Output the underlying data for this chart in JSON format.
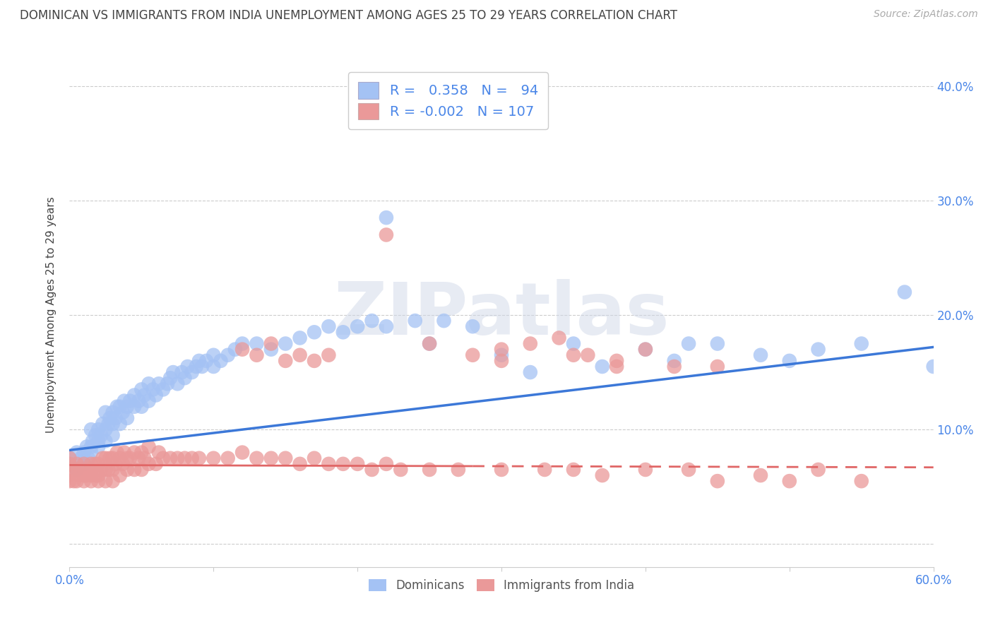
{
  "title": "DOMINICAN VS IMMIGRANTS FROM INDIA UNEMPLOYMENT AMONG AGES 25 TO 29 YEARS CORRELATION CHART",
  "source": "Source: ZipAtlas.com",
  "ylabel": "Unemployment Among Ages 25 to 29 years",
  "xlim": [
    0.0,
    0.6
  ],
  "ylim": [
    -0.02,
    0.42
  ],
  "xticks": [
    0.0,
    0.1,
    0.2,
    0.3,
    0.4,
    0.5,
    0.6
  ],
  "xtick_labels": [
    "0.0%",
    "",
    "",
    "",
    "",
    "",
    "60.0%"
  ],
  "yticks": [
    0.0,
    0.1,
    0.2,
    0.3,
    0.4
  ],
  "ytick_labels_right": [
    "",
    "10.0%",
    "20.0%",
    "30.0%",
    "40.0%"
  ],
  "watermark": "ZIPatlas",
  "blue_R": "0.358",
  "blue_N": "94",
  "pink_R": "-0.002",
  "pink_N": "107",
  "blue_scatter_color": "#a4c2f4",
  "pink_scatter_color": "#ea9999",
  "blue_line_color": "#3c78d8",
  "pink_line_color": "#e06666",
  "title_color": "#434343",
  "right_tick_color": "#4a86e8",
  "bottom_tick_color": "#4a86e8",
  "ylabel_color": "#434343",
  "legend_text_color": "#4a86e8",
  "source_color": "#aaaaaa",
  "background_color": "#ffffff",
  "grid_color": "#cccccc",
  "blue_scatter_x": [
    0.0,
    0.0,
    0.005,
    0.005,
    0.008,
    0.01,
    0.01,
    0.012,
    0.013,
    0.015,
    0.015,
    0.015,
    0.016,
    0.018,
    0.02,
    0.02,
    0.02,
    0.022,
    0.023,
    0.025,
    0.025,
    0.025,
    0.027,
    0.028,
    0.03,
    0.03,
    0.03,
    0.032,
    0.033,
    0.035,
    0.035,
    0.037,
    0.038,
    0.04,
    0.04,
    0.042,
    0.045,
    0.045,
    0.048,
    0.05,
    0.05,
    0.052,
    0.055,
    0.055,
    0.058,
    0.06,
    0.062,
    0.065,
    0.068,
    0.07,
    0.072,
    0.075,
    0.078,
    0.08,
    0.082,
    0.085,
    0.088,
    0.09,
    0.092,
    0.095,
    0.1,
    0.1,
    0.105,
    0.11,
    0.115,
    0.12,
    0.13,
    0.14,
    0.15,
    0.16,
    0.17,
    0.18,
    0.19,
    0.2,
    0.21,
    0.22,
    0.24,
    0.26,
    0.28,
    0.3,
    0.35,
    0.37,
    0.4,
    0.42,
    0.45,
    0.48,
    0.5,
    0.52,
    0.55,
    0.58,
    0.6,
    0.25,
    0.32,
    0.43
  ],
  "blue_scatter_y": [
    0.07,
    0.075,
    0.065,
    0.08,
    0.075,
    0.07,
    0.08,
    0.085,
    0.075,
    0.08,
    0.085,
    0.1,
    0.09,
    0.095,
    0.085,
    0.09,
    0.1,
    0.095,
    0.105,
    0.09,
    0.1,
    0.115,
    0.105,
    0.11,
    0.095,
    0.105,
    0.115,
    0.11,
    0.12,
    0.105,
    0.12,
    0.115,
    0.125,
    0.11,
    0.12,
    0.125,
    0.12,
    0.13,
    0.125,
    0.12,
    0.135,
    0.13,
    0.125,
    0.14,
    0.135,
    0.13,
    0.14,
    0.135,
    0.14,
    0.145,
    0.15,
    0.14,
    0.15,
    0.145,
    0.155,
    0.15,
    0.155,
    0.16,
    0.155,
    0.16,
    0.155,
    0.165,
    0.16,
    0.165,
    0.17,
    0.175,
    0.175,
    0.17,
    0.175,
    0.18,
    0.185,
    0.19,
    0.185,
    0.19,
    0.195,
    0.19,
    0.195,
    0.195,
    0.19,
    0.165,
    0.175,
    0.155,
    0.17,
    0.16,
    0.175,
    0.165,
    0.16,
    0.17,
    0.175,
    0.22,
    0.155,
    0.175,
    0.15,
    0.175
  ],
  "pink_scatter_x": [
    0.0,
    0.0,
    0.0,
    0.0,
    0.0,
    0.003,
    0.005,
    0.005,
    0.005,
    0.007,
    0.008,
    0.01,
    0.01,
    0.01,
    0.012,
    0.013,
    0.015,
    0.015,
    0.015,
    0.015,
    0.018,
    0.018,
    0.02,
    0.02,
    0.02,
    0.022,
    0.023,
    0.025,
    0.025,
    0.025,
    0.027,
    0.028,
    0.03,
    0.03,
    0.03,
    0.032,
    0.033,
    0.035,
    0.035,
    0.037,
    0.038,
    0.04,
    0.04,
    0.042,
    0.045,
    0.045,
    0.048,
    0.05,
    0.05,
    0.052,
    0.055,
    0.055,
    0.06,
    0.062,
    0.065,
    0.07,
    0.075,
    0.08,
    0.085,
    0.09,
    0.1,
    0.11,
    0.12,
    0.13,
    0.14,
    0.15,
    0.16,
    0.17,
    0.18,
    0.19,
    0.2,
    0.21,
    0.22,
    0.23,
    0.25,
    0.27,
    0.3,
    0.33,
    0.35,
    0.37,
    0.4,
    0.43,
    0.45,
    0.48,
    0.5,
    0.52,
    0.55,
    0.3,
    0.32,
    0.34,
    0.36,
    0.38,
    0.4,
    0.12,
    0.13,
    0.14,
    0.15,
    0.16,
    0.17,
    0.18,
    0.25,
    0.28,
    0.3,
    0.35,
    0.38,
    0.42,
    0.45
  ],
  "pink_scatter_y": [
    0.055,
    0.06,
    0.065,
    0.07,
    0.075,
    0.055,
    0.055,
    0.065,
    0.07,
    0.06,
    0.065,
    0.055,
    0.06,
    0.07,
    0.06,
    0.065,
    0.055,
    0.06,
    0.065,
    0.07,
    0.06,
    0.07,
    0.055,
    0.06,
    0.07,
    0.065,
    0.075,
    0.055,
    0.065,
    0.075,
    0.065,
    0.075,
    0.055,
    0.065,
    0.075,
    0.07,
    0.08,
    0.06,
    0.075,
    0.07,
    0.08,
    0.065,
    0.075,
    0.075,
    0.065,
    0.08,
    0.075,
    0.065,
    0.08,
    0.075,
    0.07,
    0.085,
    0.07,
    0.08,
    0.075,
    0.075,
    0.075,
    0.075,
    0.075,
    0.075,
    0.075,
    0.075,
    0.08,
    0.075,
    0.075,
    0.075,
    0.07,
    0.075,
    0.07,
    0.07,
    0.07,
    0.065,
    0.07,
    0.065,
    0.065,
    0.065,
    0.065,
    0.065,
    0.065,
    0.06,
    0.065,
    0.065,
    0.055,
    0.06,
    0.055,
    0.065,
    0.055,
    0.17,
    0.175,
    0.18,
    0.165,
    0.16,
    0.17,
    0.17,
    0.165,
    0.175,
    0.16,
    0.165,
    0.16,
    0.165,
    0.175,
    0.165,
    0.16,
    0.165,
    0.155,
    0.155,
    0.155
  ],
  "pink_outlier_x": [
    0.22
  ],
  "pink_outlier_y": [
    0.27
  ],
  "blue_outlier_x": [
    0.22
  ],
  "blue_outlier_y": [
    0.285
  ]
}
